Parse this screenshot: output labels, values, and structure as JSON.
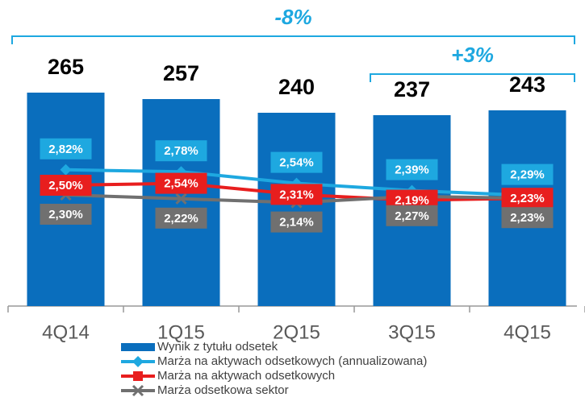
{
  "chart_data": {
    "type": "bar",
    "categories": [
      "4Q14",
      "1Q15",
      "2Q15",
      "3Q15",
      "4Q15"
    ],
    "series": [
      {
        "name": "Wynik z tytułu odsetek",
        "type": "bar",
        "color": "#0a6ebd",
        "values": [
          265,
          257,
          240,
          237,
          243
        ]
      },
      {
        "name": "Marża na aktywach odsetkowych (annualizowana)",
        "type": "line",
        "axis": "y2",
        "color": "#1ea8e0",
        "marker": "diamond",
        "values": [
          2.82,
          2.78,
          2.54,
          2.39,
          2.29
        ],
        "value_labels": [
          "2,82%",
          "2,78%",
          "2,54%",
          "2,39%",
          "2,29%"
        ]
      },
      {
        "name": "Marża na aktywach odsetkowych",
        "type": "line",
        "axis": "y2",
        "color": "#e81e1e",
        "marker": "square",
        "values": [
          2.5,
          2.54,
          2.31,
          2.19,
          2.23
        ],
        "value_labels": [
          "2,50%",
          "2,54%",
          "2,31%",
          "2,19%",
          "2,23%"
        ]
      },
      {
        "name": "Marża odsetkowa sektor",
        "type": "line",
        "axis": "y2",
        "color": "#707070",
        "marker": "x",
        "values": [
          2.3,
          2.22,
          2.14,
          2.27,
          2.23
        ],
        "value_labels": [
          "2,30%",
          "2,22%",
          "2,14%",
          "2,27%",
          "2,23%"
        ]
      }
    ],
    "ylim": [
      0,
      300
    ],
    "y2lim": [
      0,
      5
    ],
    "annotations": [
      {
        "text": "-8%",
        "from": 0,
        "to": 4
      },
      {
        "text": "+3%",
        "from": 3,
        "to": 4
      }
    ],
    "legend": "bottom"
  }
}
